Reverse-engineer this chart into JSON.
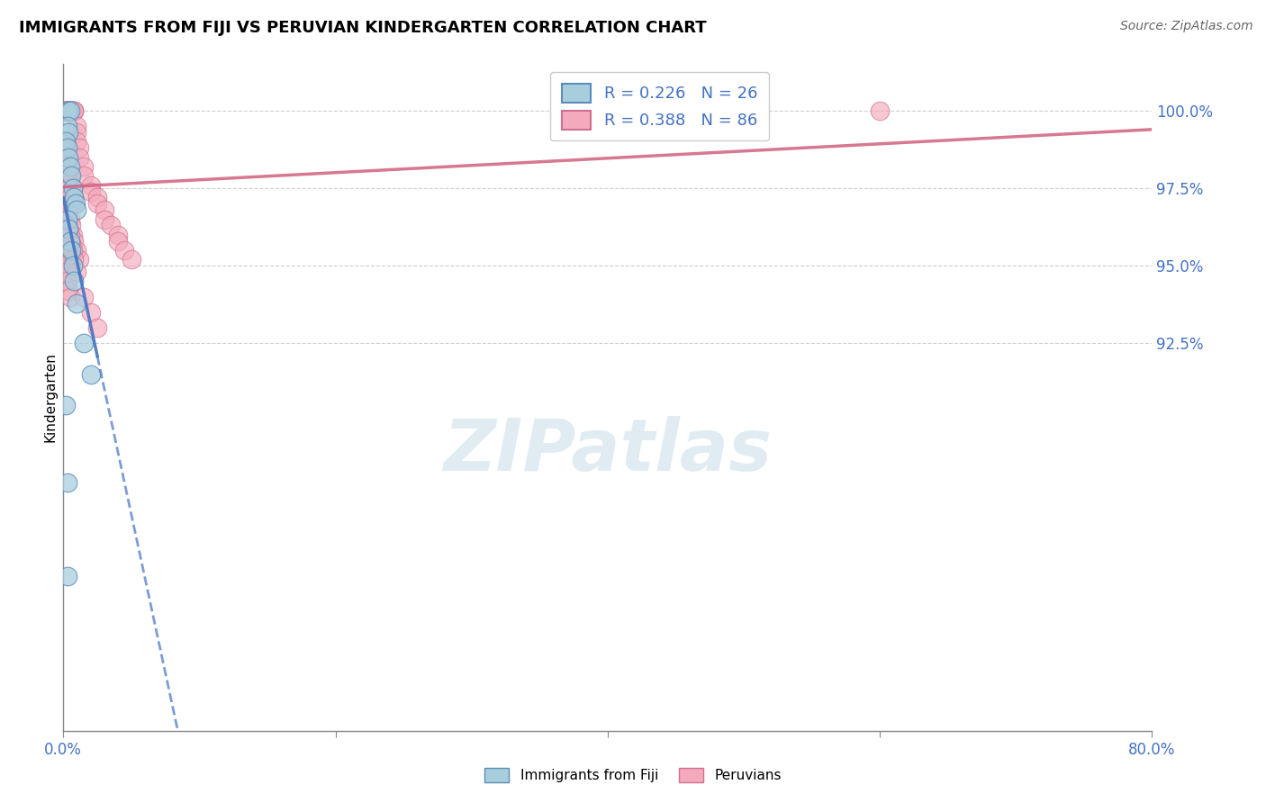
{
  "title": "IMMIGRANTS FROM FIJI VS PERUVIAN KINDERGARTEN CORRELATION CHART",
  "source": "Source: ZipAtlas.com",
  "ylabel": "Kindergarten",
  "fiji_R": 0.226,
  "fiji_N": 26,
  "peru_R": 0.388,
  "peru_N": 86,
  "fiji_color": "#A8CEDE",
  "fiji_edge_color": "#5B8DB8",
  "peru_color": "#F4AABC",
  "peru_edge_color": "#D07090",
  "fiji_line_color": "#4472C4",
  "peru_line_color": "#D06080",
  "watermark_color": "#C8DCE8",
  "y_ticks": [
    92.5,
    95.0,
    97.5,
    100.0
  ],
  "x_min": 0.0,
  "x_max": 80.0,
  "y_min": 80.0,
  "y_max": 101.5,
  "fiji_x": [
    0.3,
    0.4,
    0.5,
    0.3,
    0.4,
    0.2,
    0.3,
    0.4,
    0.5,
    0.6,
    0.7,
    0.8,
    0.9,
    1.0,
    0.3,
    0.4,
    0.5,
    0.6,
    0.7,
    0.8,
    1.0,
    1.5,
    2.0,
    0.2,
    0.3,
    0.3
  ],
  "fiji_y": [
    100.0,
    100.0,
    100.0,
    99.5,
    99.3,
    99.0,
    98.8,
    98.5,
    98.2,
    97.9,
    97.5,
    97.2,
    97.0,
    96.8,
    96.5,
    96.2,
    95.8,
    95.5,
    95.0,
    94.5,
    93.8,
    92.5,
    91.5,
    90.5,
    88.0,
    85.0
  ],
  "peru_x": [
    0.1,
    0.1,
    0.1,
    0.2,
    0.2,
    0.2,
    0.3,
    0.3,
    0.3,
    0.3,
    0.4,
    0.4,
    0.4,
    0.5,
    0.5,
    0.5,
    0.6,
    0.6,
    0.6,
    0.7,
    0.7,
    0.8,
    0.8,
    0.8,
    1.0,
    1.0,
    1.0,
    1.2,
    1.2,
    1.5,
    1.5,
    2.0,
    2.0,
    2.5,
    2.5,
    3.0,
    3.0,
    3.5,
    4.0,
    4.0,
    4.5,
    5.0,
    0.1,
    0.2,
    0.3,
    0.4,
    0.5,
    0.6,
    0.7,
    0.8,
    0.1,
    0.2,
    0.3,
    0.4,
    0.5,
    0.6,
    0.7,
    0.8,
    1.0,
    1.2,
    0.1,
    0.2,
    0.3,
    0.4,
    0.1,
    0.2,
    0.3,
    0.4,
    0.5,
    0.2,
    0.3,
    0.4,
    0.5,
    0.6,
    0.3,
    0.4,
    0.5,
    0.6,
    0.7,
    0.8,
    1.0,
    1.5,
    2.0,
    2.5,
    60.0,
    0.3
  ],
  "peru_y": [
    100.0,
    100.0,
    100.0,
    100.0,
    100.0,
    100.0,
    100.0,
    100.0,
    100.0,
    100.0,
    100.0,
    100.0,
    100.0,
    100.0,
    100.0,
    100.0,
    100.0,
    100.0,
    100.0,
    100.0,
    100.0,
    100.0,
    100.0,
    100.0,
    99.5,
    99.3,
    99.0,
    98.8,
    98.5,
    98.2,
    97.9,
    97.6,
    97.4,
    97.2,
    97.0,
    96.8,
    96.5,
    96.3,
    96.0,
    95.8,
    95.5,
    95.2,
    99.0,
    98.8,
    98.5,
    98.2,
    97.9,
    97.6,
    97.3,
    97.0,
    97.5,
    97.2,
    97.0,
    96.8,
    96.5,
    96.3,
    96.0,
    95.8,
    95.5,
    95.2,
    96.0,
    95.7,
    95.4,
    95.1,
    95.0,
    94.8,
    94.5,
    94.2,
    94.0,
    98.0,
    97.8,
    97.5,
    97.2,
    97.0,
    96.5,
    96.2,
    96.0,
    95.7,
    95.5,
    95.2,
    94.8,
    94.0,
    93.5,
    93.0,
    100.0,
    98.5
  ]
}
